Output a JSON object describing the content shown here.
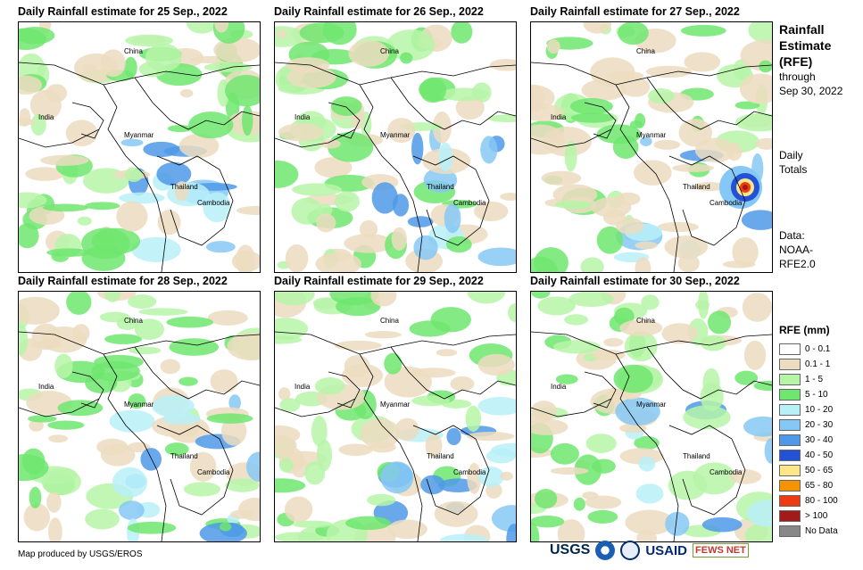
{
  "panels": [
    {
      "title": "Daily Rainfall estimate for 25 Sep., 2022",
      "intensity": 1
    },
    {
      "title": "Daily Rainfall estimate for 26 Sep., 2022",
      "intensity": 1
    },
    {
      "title": "Daily Rainfall estimate for 27 Sep., 2022",
      "intensity": 2
    },
    {
      "title": "Daily Rainfall estimate for 28 Sep., 2022",
      "intensity": 1
    },
    {
      "title": "Daily Rainfall estimate for 29 Sep., 2022",
      "intensity": 1
    },
    {
      "title": "Daily Rainfall estimate for 30 Sep., 2022",
      "intensity": 1
    }
  ],
  "map_labels": {
    "china": "China",
    "india": "India",
    "myanmar": "Myanmar",
    "thailand": "Thailand",
    "cambodia": "Cambodia"
  },
  "sidebar": {
    "title_line1": "Rainfall",
    "title_line2": "Estimate",
    "title_line3": "(RFE)",
    "through": "through",
    "date": "Sep 30, 2022",
    "daily": "Daily",
    "totals": "Totals",
    "data": "Data:",
    "source1": "NOAA-",
    "source2": "RFE2.0"
  },
  "legend": {
    "title": "RFE (mm)",
    "items": [
      {
        "label": "0 - 0.1",
        "color": "#ffffff"
      },
      {
        "label": "0.1 - 1",
        "color": "#ecdcc0"
      },
      {
        "label": "1 - 5",
        "color": "#b6f5a8"
      },
      {
        "label": "5 - 10",
        "color": "#6fe66f"
      },
      {
        "label": "10 - 20",
        "color": "#b8f0f8"
      },
      {
        "label": "20 - 30",
        "color": "#86c8f5"
      },
      {
        "label": "30 - 40",
        "color": "#4f9ae8"
      },
      {
        "label": "40 - 50",
        "color": "#2352d6"
      },
      {
        "label": "50 - 65",
        "color": "#fde68a"
      },
      {
        "label": "65 - 80",
        "color": "#f59300"
      },
      {
        "label": "80 - 100",
        "color": "#ef3b12"
      },
      {
        "label": "> 100",
        "color": "#a31a1a"
      },
      {
        "label": "No Data",
        "color": "#888888"
      }
    ]
  },
  "credit": "Map produced by USGS/EROS",
  "logos": {
    "usgs": "USGS",
    "usaid": "USAID",
    "fews": "FEWS NET"
  }
}
